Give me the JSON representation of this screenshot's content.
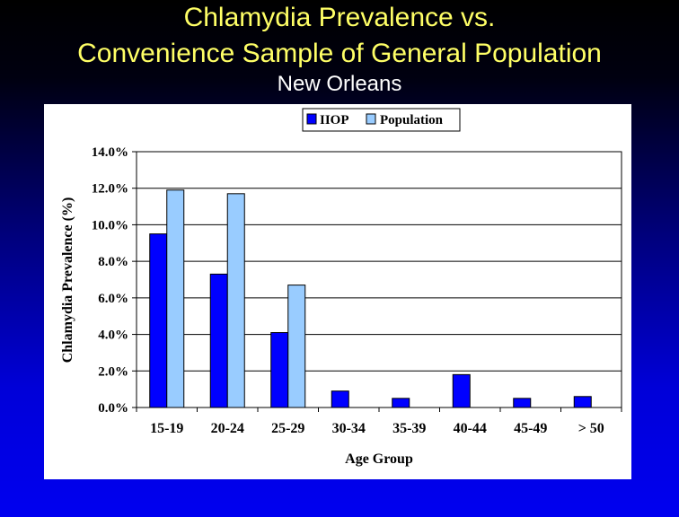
{
  "slide": {
    "title_line1": "Chlamydia Prevalence vs.",
    "title_line2": "Convenience Sample of General Population",
    "subtitle": "New Orleans"
  },
  "colors": {
    "series1": "#0000ff",
    "series2": "#99ccff",
    "title": "#ffff66"
  },
  "chart_data": {
    "type": "bar",
    "title": "",
    "xlabel": "Age Group",
    "ylabel": "Chlamydia Prevalence (%)",
    "ylim": [
      0,
      14
    ],
    "yticks": [
      0,
      2,
      4,
      6,
      8,
      10,
      12,
      14
    ],
    "ytick_labels": [
      "0.0%",
      "2.0%",
      "4.0%",
      "6.0%",
      "8.0%",
      "10.0%",
      "12.0%",
      "14.0%"
    ],
    "categories": [
      "15-19",
      "20-24",
      "25-29",
      "30-34",
      "35-39",
      "40-44",
      "45-49",
      "> 50"
    ],
    "series": [
      {
        "name": "IIOP",
        "values": [
          9.5,
          7.3,
          4.1,
          0.9,
          0.5,
          1.8,
          0.5,
          0.6
        ]
      },
      {
        "name": "Population",
        "values": [
          11.9,
          11.7,
          6.7,
          null,
          null,
          null,
          null,
          null
        ]
      }
    ],
    "legend": "top-center",
    "grid": "horizontal"
  }
}
